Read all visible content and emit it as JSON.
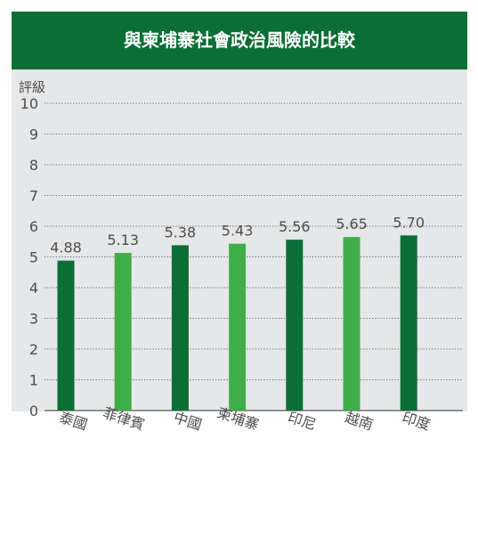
{
  "chart_data": {
    "type": "bar",
    "title": "與柬埔寨社會政治風險的比較",
    "ylabel": "評級",
    "xlabel": "",
    "categories": [
      "泰國",
      "菲律賓",
      "中國",
      "柬埔寨",
      "印尼",
      "越南",
      "印度"
    ],
    "values": [
      4.88,
      5.13,
      5.38,
      5.43,
      5.56,
      5.65,
      5.7
    ],
    "value_labels": [
      "4.88",
      "5.13",
      "5.38",
      "5.43",
      "5.56",
      "5.65",
      "5.70"
    ],
    "ylim": [
      0,
      10
    ],
    "yticks": [
      "0",
      "1",
      "2",
      "3",
      "4",
      "5",
      "6",
      "7",
      "8",
      "9",
      "10"
    ],
    "grid": true,
    "grid_style": "dotted",
    "bar_colors": [
      "#0a6e35",
      "#41ad48",
      "#0a6e35",
      "#41ad48",
      "#0a6e35",
      "#41ad48",
      "#0a6e35"
    ]
  },
  "colors": {
    "title_bar": "#0a6e35",
    "title_text": "#ffffff",
    "plot_background": "#e6e7e8",
    "text": "#4d4d4d",
    "gridline": "#3a3a3a",
    "dark_green": "#0a6e35",
    "light_green": "#41ad48"
  }
}
